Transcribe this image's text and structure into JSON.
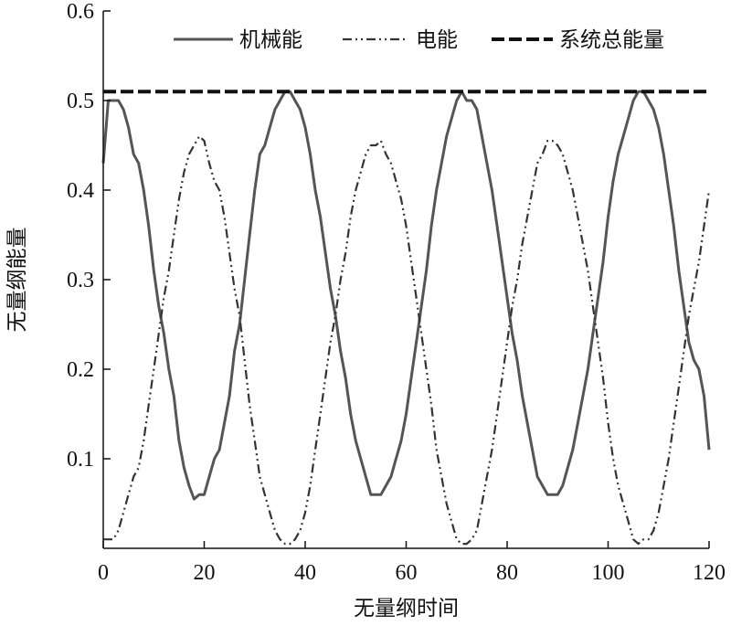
{
  "chart_data": {
    "type": "line",
    "title": "",
    "xlabel": "无量纲时间",
    "ylabel": "无量纲能量",
    "xlim": [
      0,
      120
    ],
    "ylim": [
      0,
      0.6
    ],
    "xticks": [
      0,
      20,
      40,
      60,
      80,
      100,
      120
    ],
    "xtick_labels": [
      "0",
      "20",
      "40",
      "60",
      "80",
      "100",
      "120"
    ],
    "yticks": [
      0.1,
      0.2,
      0.3,
      0.4,
      0.5,
      0.6
    ],
    "ytick_labels": [
      "0.1",
      "0.2",
      "0.3",
      "0.4",
      "0.5",
      "0.6"
    ],
    "grid": false,
    "legend_position": "top",
    "series": [
      {
        "name": "机械能",
        "style": "solid",
        "color": "#555555",
        "x": [
          0,
          1,
          2,
          3,
          4,
          5,
          6,
          7,
          8,
          9,
          10,
          11,
          12,
          13,
          14,
          15,
          16,
          17,
          18,
          19,
          20,
          21,
          22,
          23,
          24,
          25,
          26,
          27,
          28,
          29,
          30,
          31,
          32,
          33,
          34,
          35,
          36,
          37,
          38,
          39,
          40,
          41,
          42,
          43,
          44,
          45,
          46,
          47,
          48,
          49,
          50,
          51,
          52,
          53,
          54,
          55,
          56,
          57,
          58,
          59,
          60,
          61,
          62,
          63,
          64,
          65,
          66,
          67,
          68,
          69,
          70,
          71,
          72,
          73,
          74,
          75,
          76,
          77,
          78,
          79,
          80,
          81,
          82,
          83,
          84,
          85,
          86,
          87,
          88,
          89,
          90,
          91,
          92,
          93,
          94,
          95,
          96,
          97,
          98,
          99,
          100,
          101,
          102,
          103,
          104,
          105,
          106,
          107,
          108,
          109,
          110,
          111,
          112,
          113,
          114,
          115,
          116,
          117,
          118,
          119,
          120
        ],
        "values": [
          0.43,
          0.5,
          0.5,
          0.5,
          0.49,
          0.47,
          0.44,
          0.43,
          0.4,
          0.36,
          0.31,
          0.27,
          0.24,
          0.2,
          0.17,
          0.12,
          0.09,
          0.07,
          0.055,
          0.06,
          0.06,
          0.08,
          0.1,
          0.11,
          0.14,
          0.17,
          0.22,
          0.25,
          0.3,
          0.35,
          0.4,
          0.44,
          0.45,
          0.47,
          0.49,
          0.5,
          0.51,
          0.51,
          0.5,
          0.49,
          0.47,
          0.44,
          0.4,
          0.37,
          0.33,
          0.29,
          0.26,
          0.22,
          0.19,
          0.15,
          0.12,
          0.1,
          0.08,
          0.06,
          0.06,
          0.06,
          0.07,
          0.08,
          0.1,
          0.12,
          0.15,
          0.19,
          0.23,
          0.27,
          0.31,
          0.36,
          0.4,
          0.43,
          0.46,
          0.48,
          0.5,
          0.51,
          0.5,
          0.5,
          0.49,
          0.46,
          0.43,
          0.4,
          0.36,
          0.32,
          0.28,
          0.24,
          0.21,
          0.17,
          0.14,
          0.11,
          0.08,
          0.07,
          0.06,
          0.06,
          0.06,
          0.07,
          0.09,
          0.11,
          0.14,
          0.17,
          0.2,
          0.24,
          0.28,
          0.32,
          0.37,
          0.41,
          0.44,
          0.46,
          0.48,
          0.5,
          0.51,
          0.51,
          0.5,
          0.49,
          0.47,
          0.44,
          0.4,
          0.36,
          0.31,
          0.27,
          0.23,
          0.21,
          0.2,
          0.17,
          0.11
        ]
      },
      {
        "name": "电能",
        "style": "dash-dot-dot",
        "color": "#333333",
        "x": [
          0,
          1,
          2,
          3,
          4,
          5,
          6,
          7,
          8,
          9,
          10,
          11,
          12,
          13,
          14,
          15,
          16,
          17,
          18,
          19,
          20,
          21,
          22,
          23,
          24,
          25,
          26,
          27,
          28,
          29,
          30,
          31,
          32,
          33,
          34,
          35,
          36,
          37,
          38,
          39,
          40,
          41,
          42,
          43,
          44,
          45,
          46,
          47,
          48,
          49,
          50,
          51,
          52,
          53,
          54,
          55,
          56,
          57,
          58,
          59,
          60,
          61,
          62,
          63,
          64,
          65,
          66,
          67,
          68,
          69,
          70,
          71,
          72,
          73,
          74,
          75,
          76,
          77,
          78,
          79,
          80,
          81,
          82,
          83,
          84,
          85,
          86,
          87,
          88,
          89,
          90,
          91,
          92,
          93,
          94,
          95,
          96,
          97,
          98,
          99,
          100,
          101,
          102,
          103,
          104,
          105,
          106,
          107,
          108,
          109,
          110,
          111,
          112,
          113,
          114,
          115,
          116,
          117,
          118,
          119,
          120
        ],
        "values": [
          0.01,
          0.01,
          0.01,
          0.02,
          0.04,
          0.06,
          0.08,
          0.09,
          0.12,
          0.16,
          0.2,
          0.24,
          0.28,
          0.31,
          0.35,
          0.39,
          0.42,
          0.44,
          0.45,
          0.46,
          0.455,
          0.43,
          0.41,
          0.4,
          0.37,
          0.33,
          0.29,
          0.26,
          0.21,
          0.16,
          0.12,
          0.08,
          0.06,
          0.04,
          0.02,
          0.01,
          0.005,
          0.005,
          0.01,
          0.02,
          0.04,
          0.07,
          0.11,
          0.15,
          0.19,
          0.23,
          0.26,
          0.3,
          0.33,
          0.37,
          0.4,
          0.42,
          0.44,
          0.45,
          0.45,
          0.455,
          0.44,
          0.43,
          0.41,
          0.39,
          0.36,
          0.32,
          0.28,
          0.24,
          0.2,
          0.16,
          0.11,
          0.08,
          0.05,
          0.03,
          0.01,
          0.005,
          0.005,
          0.01,
          0.02,
          0.05,
          0.08,
          0.11,
          0.15,
          0.19,
          0.23,
          0.27,
          0.3,
          0.34,
          0.37,
          0.4,
          0.43,
          0.44,
          0.455,
          0.455,
          0.45,
          0.44,
          0.42,
          0.4,
          0.37,
          0.34,
          0.31,
          0.27,
          0.23,
          0.19,
          0.14,
          0.1,
          0.07,
          0.05,
          0.03,
          0.01,
          0.005,
          0.01,
          0.01,
          0.02,
          0.04,
          0.07,
          0.1,
          0.14,
          0.18,
          0.22,
          0.26,
          0.29,
          0.32,
          0.36,
          0.4
        ]
      },
      {
        "name": "系统总能量",
        "style": "dashed",
        "color": "#111111",
        "x": [
          0,
          120
        ],
        "values": [
          0.51,
          0.51
        ]
      }
    ]
  }
}
